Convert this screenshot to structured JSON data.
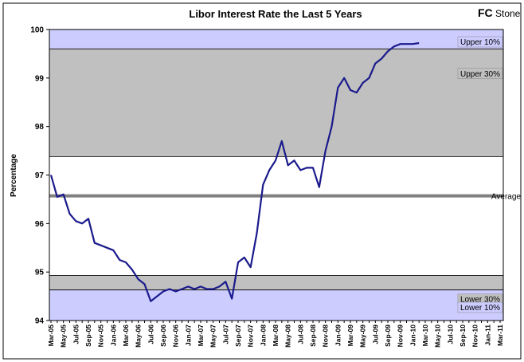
{
  "chart_data": {
    "type": "line",
    "title": "Libor Interest Rate the Last 5 Years",
    "logo_bold": "FC",
    "logo": "Stone",
    "y_label": "Percentage",
    "ylim": [
      94,
      100
    ],
    "yticks": [
      94,
      95,
      96,
      97,
      98,
      99,
      100
    ],
    "categories": [
      "Mar-05",
      null,
      "May-05",
      null,
      "Jul-05",
      null,
      "Sep-05",
      null,
      "Nov-05",
      null,
      "Jan-06",
      null,
      "Mar-06",
      null,
      "May-06",
      null,
      "Jul-06",
      null,
      "Sep-06",
      null,
      "Nov-06",
      null,
      "Jan-07",
      null,
      "Mar-07",
      null,
      "May-07",
      null,
      "Jul-07",
      null,
      "Sep-07",
      null,
      "Nov-07",
      null,
      "Jan-08",
      null,
      "Mar-08",
      null,
      "May-08",
      null,
      "Jul-08",
      null,
      "Sep-08",
      null,
      "Nov-08",
      null,
      "Jan-09",
      null,
      "Mar-09",
      null,
      "May-09",
      null,
      "Jul-09",
      null,
      "Sep-09",
      null,
      "Nov-09",
      null,
      "Jan-10",
      null,
      "Mar-10",
      null,
      "May-10",
      null,
      "Jul-10",
      null,
      "Sep-10",
      null,
      "Nov-10",
      null,
      "Jan-11",
      null,
      "Mar-11"
    ],
    "series": [
      {
        "name": "Libor",
        "color": "#1a1a8c",
        "values": [
          97.0,
          96.55,
          96.6,
          96.2,
          96.05,
          96.0,
          96.1,
          95.6,
          95.55,
          95.5,
          95.45,
          95.25,
          95.2,
          95.05,
          94.85,
          94.75,
          94.4,
          94.5,
          94.6,
          94.65,
          94.6,
          94.65,
          94.7,
          94.65,
          94.7,
          94.65,
          94.65,
          94.7,
          94.8,
          94.45,
          95.2,
          95.3,
          95.1,
          95.8,
          96.8,
          97.1,
          97.3,
          97.7,
          97.2,
          97.3,
          97.1,
          97.15,
          97.15,
          96.75,
          97.5,
          98.0,
          98.8,
          99.0,
          98.75,
          98.7,
          98.9,
          99.0,
          99.3,
          99.4,
          99.55,
          99.65,
          99.7,
          99.7,
          99.7,
          99.72,
          null,
          null,
          null,
          null,
          null,
          null,
          null,
          null,
          null,
          null,
          null,
          null,
          null
        ]
      }
    ],
    "bands": [
      {
        "label": "Upper 10%",
        "range": [
          99.6,
          100
        ],
        "color": "#ccccff"
      },
      {
        "label": "Upper 30%",
        "range": [
          97.38,
          99.6
        ],
        "color": "#c0c0c0"
      },
      {
        "label": "Lower 30%",
        "range": [
          94.63,
          94.93
        ],
        "color": "#c0c0c0"
      },
      {
        "label": "Lower 10%",
        "range": [
          94,
          94.63
        ],
        "color": "#ccccff"
      }
    ],
    "average": {
      "label": "Average",
      "value": 96.57,
      "color": "#808080"
    }
  }
}
